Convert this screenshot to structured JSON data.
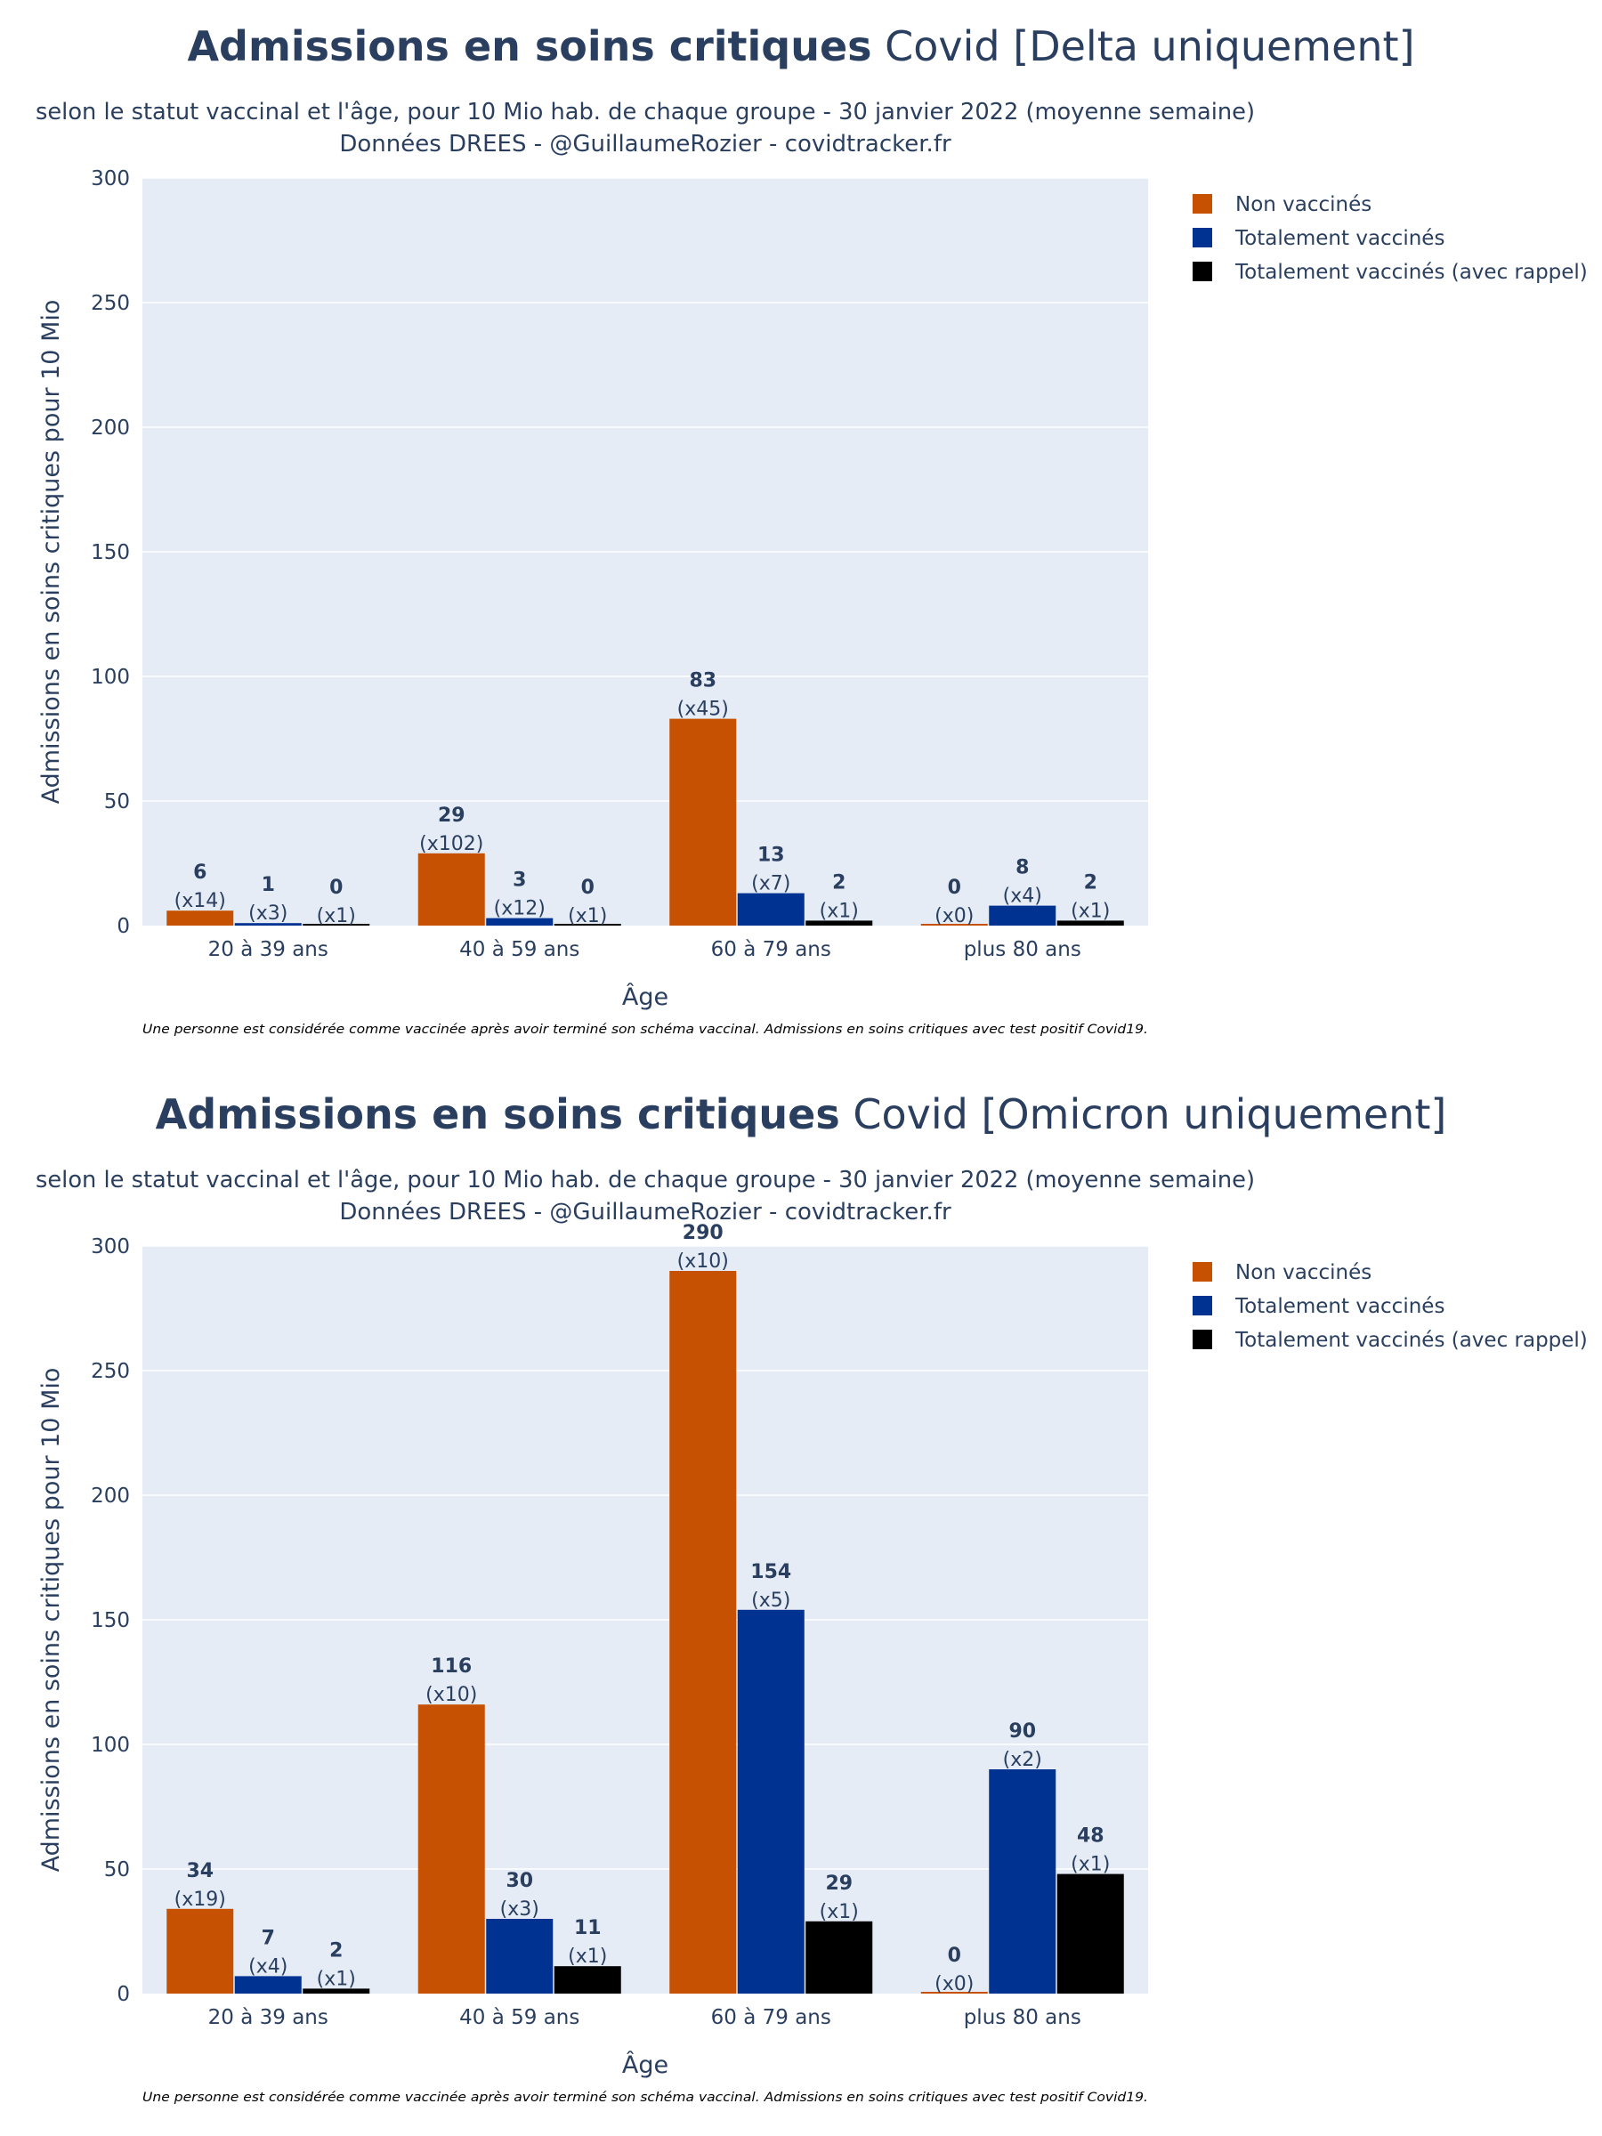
{
  "charts": [
    {
      "title_bold": "Admissions en soins critiques",
      "title_rest": " Covid [Delta uniquement]",
      "subtitle_line1": "selon le statut vaccinal et l'âge, pour 10 Mio hab. de chaque groupe - 30 janvier 2022 (moyenne semaine)",
      "subtitle_line2": "Données DREES - @GuillaumeRozier - covidtracker.fr",
      "footnote": "Une personne est considérée comme vaccinée après avoir terminé son schéma vaccinal. Admissions en soins critiques avec test positif Covid19."
    },
    {
      "title_bold": "Admissions en soins critiques",
      "title_rest": " Covid [Omicron uniquement]",
      "subtitle_line1": "selon le statut vaccinal et l'âge, pour 10 Mio hab. de chaque groupe - 30 janvier 2022 (moyenne semaine)",
      "subtitle_line2": "Données DREES - @GuillaumeRozier - covidtracker.fr",
      "footnote": "Une personne est considérée comme vaccinée après avoir terminé son schéma vaccinal. Admissions en soins critiques avec test positif Covid19."
    }
  ],
  "chart_data": [
    {
      "type": "bar",
      "categories": [
        "20 à 39 ans",
        "40 à 59 ans",
        "60 à 79 ans",
        "plus 80 ans"
      ],
      "xlabel": "Âge",
      "ylabel": "Admissions en soins critiques pour 10 Mio",
      "ylim": [
        0,
        300
      ],
      "yticks": [
        0,
        50,
        100,
        150,
        200,
        250,
        300
      ],
      "grid": true,
      "legend_position": "right",
      "series": [
        {
          "name": "Non vaccinés",
          "color": "#c65102",
          "values": [
            6,
            29,
            83,
            0
          ],
          "labels": [
            "(x14)",
            "(x102)",
            "(x45)",
            "(x0)"
          ]
        },
        {
          "name": "Totalement vaccinés",
          "color": "#003391",
          "values": [
            1,
            3,
            13,
            8
          ],
          "labels": [
            "(x3)",
            "(x12)",
            "(x7)",
            "(x4)"
          ]
        },
        {
          "name": "Totalement vaccinés (avec rappel)",
          "color": "#000000",
          "values": [
            0,
            0,
            2,
            2
          ],
          "labels": [
            "(x1)",
            "(x1)",
            "(x1)",
            "(x1)"
          ]
        }
      ]
    },
    {
      "type": "bar",
      "categories": [
        "20 à 39 ans",
        "40 à 59 ans",
        "60 à 79 ans",
        "plus 80 ans"
      ],
      "xlabel": "Âge",
      "ylabel": "Admissions en soins critiques pour 10 Mio",
      "ylim": [
        0,
        300
      ],
      "yticks": [
        0,
        50,
        100,
        150,
        200,
        250,
        300
      ],
      "grid": true,
      "legend_position": "right",
      "series": [
        {
          "name": "Non vaccinés",
          "color": "#c65102",
          "values": [
            34,
            116,
            290,
            0
          ],
          "labels": [
            "(x19)",
            "(x10)",
            "(x10)",
            "(x0)"
          ]
        },
        {
          "name": "Totalement vaccinés",
          "color": "#003391",
          "values": [
            7,
            30,
            154,
            90
          ],
          "labels": [
            "(x4)",
            "(x3)",
            "(x5)",
            "(x2)"
          ]
        },
        {
          "name": "Totalement vaccinés (avec rappel)",
          "color": "#000000",
          "values": [
            2,
            11,
            29,
            48
          ],
          "labels": [
            "(x1)",
            "(x1)",
            "(x1)",
            "(x1)"
          ]
        }
      ]
    }
  ]
}
